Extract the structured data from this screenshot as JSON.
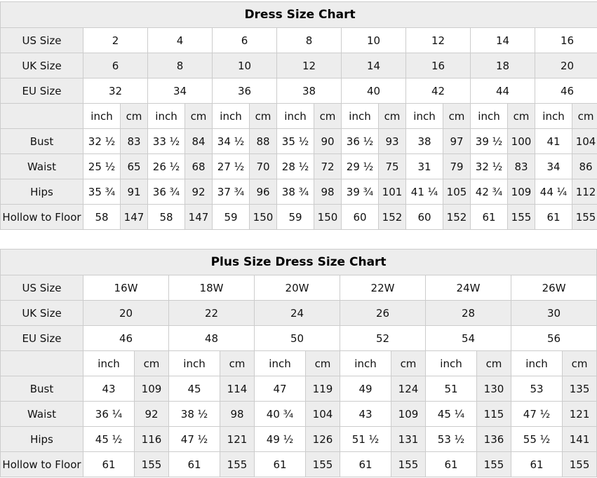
{
  "colors": {
    "shaded_bg": "#ededed",
    "border": "#cccccc",
    "text": "#111111",
    "page_bg": "#ffffff"
  },
  "tables": [
    {
      "id": "dress-size-chart",
      "title": "Dress Size Chart",
      "size_rows": [
        {
          "label": "US Size",
          "shaded": false,
          "values": [
            "2",
            "4",
            "6",
            "8",
            "10",
            "12",
            "14",
            "16"
          ]
        },
        {
          "label": "UK Size",
          "shaded": true,
          "values": [
            "6",
            "8",
            "10",
            "12",
            "14",
            "16",
            "18",
            "20"
          ]
        },
        {
          "label": "EU Size",
          "shaded": false,
          "values": [
            "32",
            "34",
            "36",
            "38",
            "40",
            "42",
            "44",
            "46"
          ]
        }
      ],
      "unit_header": {
        "label": "",
        "inch_label": "inch",
        "cm_label": "cm"
      },
      "measure_rows": [
        {
          "label": "Bust",
          "values": [
            [
              "32 ½",
              "83"
            ],
            [
              "33 ½",
              "84"
            ],
            [
              "34 ½",
              "88"
            ],
            [
              "35 ½",
              "90"
            ],
            [
              "36 ½",
              "93"
            ],
            [
              "38",
              "97"
            ],
            [
              "39 ½",
              "100"
            ],
            [
              "41",
              "104"
            ]
          ]
        },
        {
          "label": "Waist",
          "values": [
            [
              "25 ½",
              "65"
            ],
            [
              "26 ½",
              "68"
            ],
            [
              "27 ½",
              "70"
            ],
            [
              "28 ½",
              "72"
            ],
            [
              "29 ½",
              "75"
            ],
            [
              "31",
              "79"
            ],
            [
              "32 ½",
              "83"
            ],
            [
              "34",
              "86"
            ]
          ]
        },
        {
          "label": "Hips",
          "values": [
            [
              "35 ¾",
              "91"
            ],
            [
              "36 ¾",
              "92"
            ],
            [
              "37 ¾",
              "96"
            ],
            [
              "38 ¾",
              "98"
            ],
            [
              "39 ¾",
              "101"
            ],
            [
              "41 ¼",
              "105"
            ],
            [
              "42 ¾",
              "109"
            ],
            [
              "44 ¼",
              "112"
            ]
          ]
        },
        {
          "label": "Hollow to Floor",
          "values": [
            [
              "58",
              "147"
            ],
            [
              "58",
              "147"
            ],
            [
              "59",
              "150"
            ],
            [
              "59",
              "150"
            ],
            [
              "60",
              "152"
            ],
            [
              "60",
              "152"
            ],
            [
              "61",
              "155"
            ],
            [
              "61",
              "155"
            ]
          ]
        }
      ]
    },
    {
      "id": "plus-size-dress-size-chart",
      "title": "Plus Size Dress Size Chart",
      "size_rows": [
        {
          "label": "US Size",
          "shaded": false,
          "values": [
            "16W",
            "18W",
            "20W",
            "22W",
            "24W",
            "26W"
          ]
        },
        {
          "label": "UK Size",
          "shaded": true,
          "values": [
            "20",
            "22",
            "24",
            "26",
            "28",
            "30"
          ]
        },
        {
          "label": "EU Size",
          "shaded": false,
          "values": [
            "46",
            "48",
            "50",
            "52",
            "54",
            "56"
          ]
        }
      ],
      "unit_header": {
        "label": "",
        "inch_label": "inch",
        "cm_label": "cm"
      },
      "measure_rows": [
        {
          "label": "Bust",
          "values": [
            [
              "43",
              "109"
            ],
            [
              "45",
              "114"
            ],
            [
              "47",
              "119"
            ],
            [
              "49",
              "124"
            ],
            [
              "51",
              "130"
            ],
            [
              "53",
              "135"
            ]
          ]
        },
        {
          "label": "Waist",
          "values": [
            [
              "36 ¼",
              "92"
            ],
            [
              "38 ½",
              "98"
            ],
            [
              "40 ¾",
              "104"
            ],
            [
              "43",
              "109"
            ],
            [
              "45 ¼",
              "115"
            ],
            [
              "47 ½",
              "121"
            ]
          ]
        },
        {
          "label": "Hips",
          "values": [
            [
              "45 ½",
              "116"
            ],
            [
              "47 ½",
              "121"
            ],
            [
              "49 ½",
              "126"
            ],
            [
              "51 ½",
              "131"
            ],
            [
              "53 ½",
              "136"
            ],
            [
              "55 ½",
              "141"
            ]
          ]
        },
        {
          "label": "Hollow to Floor",
          "values": [
            [
              "61",
              "155"
            ],
            [
              "61",
              "155"
            ],
            [
              "61",
              "155"
            ],
            [
              "61",
              "155"
            ],
            [
              "61",
              "155"
            ],
            [
              "61",
              "155"
            ]
          ]
        }
      ]
    }
  ]
}
